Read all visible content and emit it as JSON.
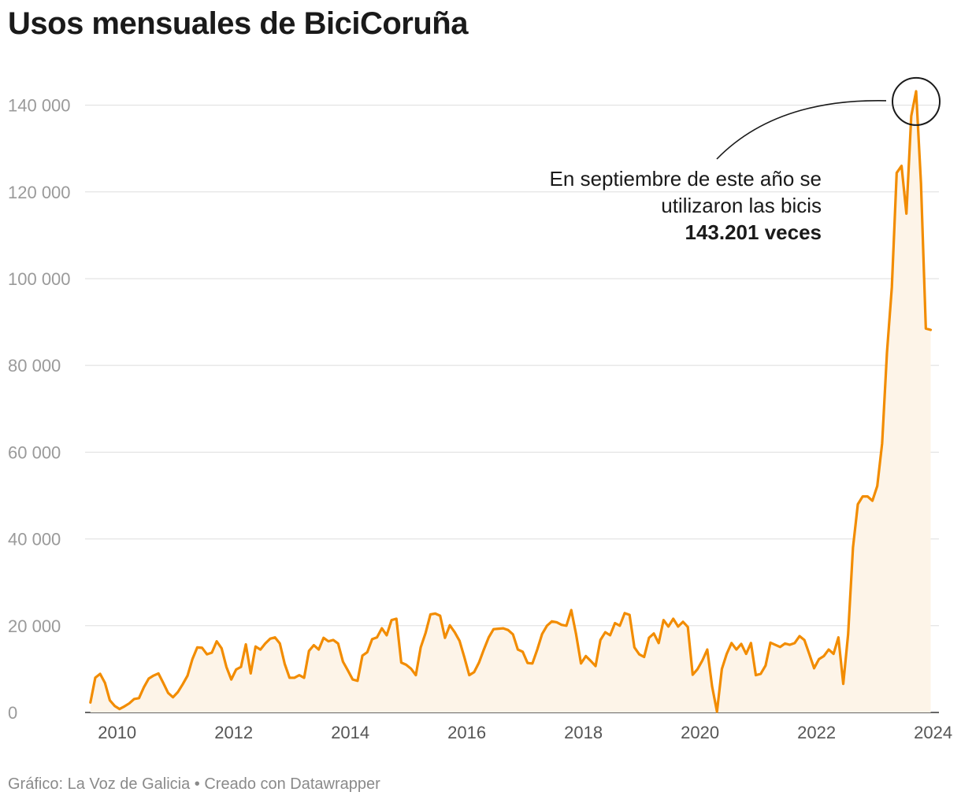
{
  "chart_data": {
    "type": "line",
    "title": "Usos mensuales de BiciCoruña",
    "xlabel": "",
    "ylabel": "",
    "x_start": {
      "year": 2009,
      "month": 7
    },
    "xlim": [
      2009.45,
      2024.1
    ],
    "ylim": [
      0,
      147000
    ],
    "yticks": [
      0,
      20000,
      40000,
      60000,
      80000,
      100000,
      120000,
      140000
    ],
    "ytick_labels": [
      "0",
      "20 000",
      "40 000",
      "60 000",
      "80 000",
      "100 000",
      "120 000",
      "140 000"
    ],
    "xticks": [
      2010,
      2012,
      2014,
      2016,
      2018,
      2020,
      2022,
      2024
    ],
    "xtick_labels": [
      "2010",
      "2012",
      "2014",
      "2016",
      "2018",
      "2020",
      "2022",
      "2024"
    ],
    "grid": true,
    "series": [
      {
        "name": "Usos mensuales",
        "color": "#f28c00",
        "fill_color": "#fdf4e8",
        "values": [
          2300,
          8000,
          8900,
          6800,
          2800,
          1500,
          800,
          1400,
          2100,
          3100,
          3300,
          5800,
          7800,
          8500,
          9000,
          6800,
          4500,
          3500,
          4700,
          6500,
          8500,
          12300,
          15000,
          14900,
          13400,
          13800,
          16400,
          14800,
          10500,
          7600,
          9900,
          10500,
          15700,
          9000,
          15200,
          14500,
          15900,
          17000,
          17300,
          15900,
          11200,
          8000,
          8000,
          8600,
          8000,
          14200,
          15500,
          14500,
          17200,
          16400,
          16700,
          15900,
          11700,
          9700,
          7600,
          7300,
          13100,
          13900,
          16900,
          17300,
          19400,
          17800,
          21300,
          21600,
          11500,
          11000,
          10100,
          8600,
          15000,
          18300,
          22600,
          22800,
          22300,
          17200,
          20100,
          18500,
          16500,
          12700,
          8600,
          9300,
          11500,
          14500,
          17300,
          19200,
          19300,
          19400,
          19000,
          18000,
          14500,
          14000,
          11400,
          11300,
          14500,
          18100,
          20000,
          21000,
          20800,
          20200,
          20000,
          23600,
          18000,
          11300,
          13000,
          11900,
          10700,
          16700,
          18500,
          17800,
          20600,
          20000,
          22900,
          22500,
          15000,
          13400,
          12800,
          17200,
          18200,
          16000,
          21300,
          19800,
          21600,
          19800,
          20900,
          19700,
          8700,
          10000,
          12000,
          14500,
          6000,
          200,
          10000,
          13500,
          16000,
          14500,
          15800,
          13500,
          16000,
          8600,
          8900,
          10800,
          16100,
          15600,
          15100,
          15900,
          15600,
          16000,
          17600,
          16700,
          13500,
          10200,
          12300,
          13000,
          14500,
          13500,
          17300,
          6600,
          18000,
          38000,
          48000,
          49800,
          49800,
          48800,
          52200,
          62000,
          83000,
          98000,
          124400,
          126000,
          115000,
          137500,
          143201,
          122000,
          88500,
          88200
        ]
      }
    ],
    "annotation": {
      "line1": "En septiembre de este año se",
      "line2": "utilizaron las bicis",
      "line3": "143.201 veces",
      "target_index": 170
    },
    "footer": "Gráfico: La Voz de Galicia • Creado con Datawrapper"
  }
}
